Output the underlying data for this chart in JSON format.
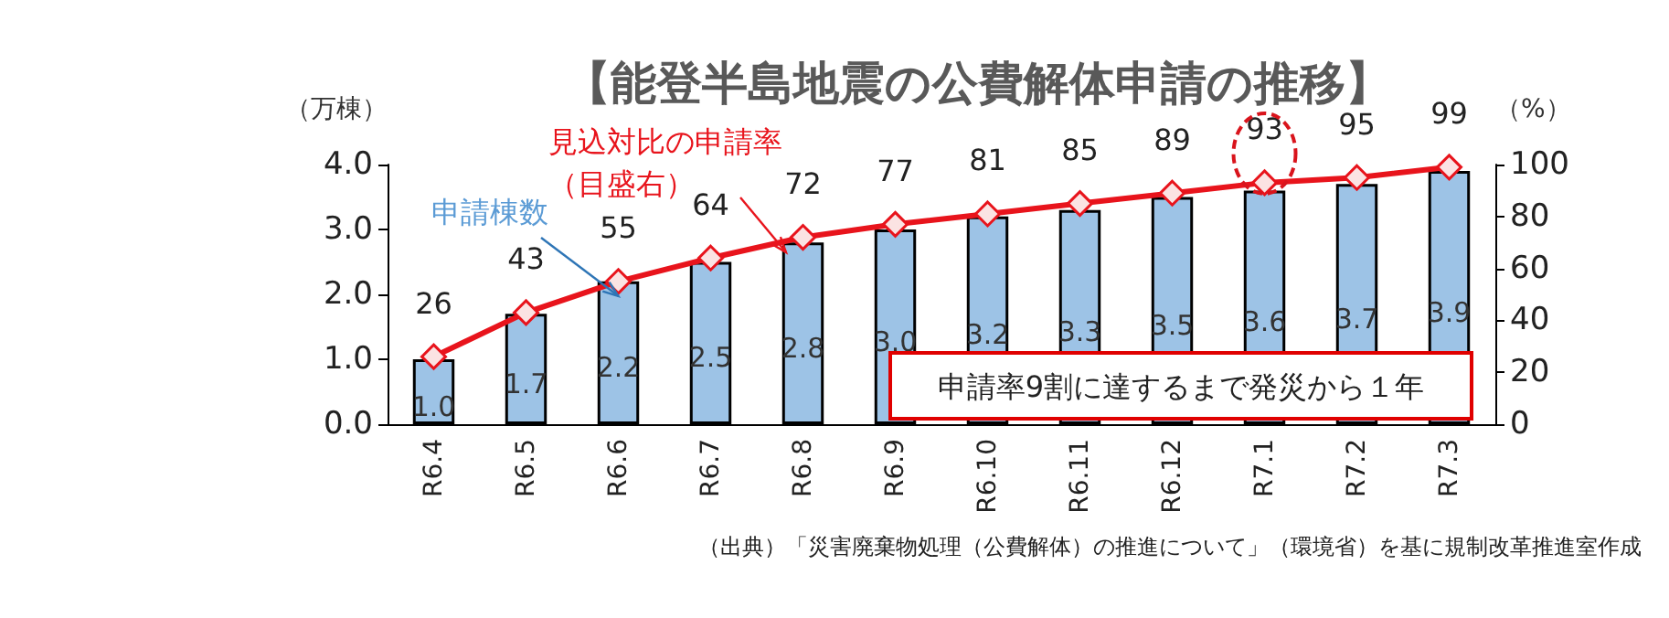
{
  "chart_data": {
    "type": "bar",
    "title": "【能登半島地震の公費解体申請の推移】",
    "ylabel": "（万棟）",
    "y2label": "（%）",
    "categories": [
      "R6.4",
      "R6.5",
      "R6.6",
      "R6.7",
      "R6.8",
      "R6.9",
      "R6.10",
      "R6.11",
      "R6.12",
      "R7.1",
      "R7.2",
      "R7.3"
    ],
    "series": [
      {
        "color": "#9dc3e6",
        "values": [
          1.0,
          1.7,
          2.2,
          2.5,
          2.8,
          3.0,
          3.2,
          3.3,
          3.5,
          3.6,
          3.7,
          3.9
        ],
        "value_labels": [
          "1.0",
          "1.7",
          "2.2",
          "2.5",
          "2.8",
          "3.0",
          "3.2",
          "3.3",
          "3.5",
          "3.6",
          "3.7",
          "3.9"
        ]
      },
      {
        "type": "line",
        "axis": "y2",
        "color": "#e8141c",
        "values": [
          26,
          43,
          55,
          64,
          72,
          77,
          81,
          85,
          89,
          93,
          95,
          99
        ],
        "value_labels": [
          "26",
          "43",
          "55",
          "64",
          "72",
          "77",
          "81",
          "85",
          "89",
          "93",
          "95",
          "99"
        ]
      }
    ],
    "ylim": [
      0,
      4
    ],
    "yticks": [
      {
        "value": 0,
        "label": "0.0"
      },
      {
        "value": 1,
        "label": "1.0"
      },
      {
        "value": 2,
        "label": "2.0"
      },
      {
        "value": 3,
        "label": "3.0"
      },
      {
        "value": 4,
        "label": "4.0"
      }
    ],
    "y2lim": [
      0,
      100
    ],
    "y2ticks": [
      0,
      20,
      40,
      60,
      80,
      100
    ],
    "marker": "diamond",
    "line_style": "solid",
    "annotations": [
      "見込対比の申請率（目盛右）",
      {
        "text": "申請棟数",
        "x": "R6.6",
        "y": 2.2
      },
      "申請率9割に達するまで発災から１年",
      "（出典）「災害廃棄物処理（公費解体）の推進について」（環境省）を基に規制改革推進室作成"
    ]
  }
}
